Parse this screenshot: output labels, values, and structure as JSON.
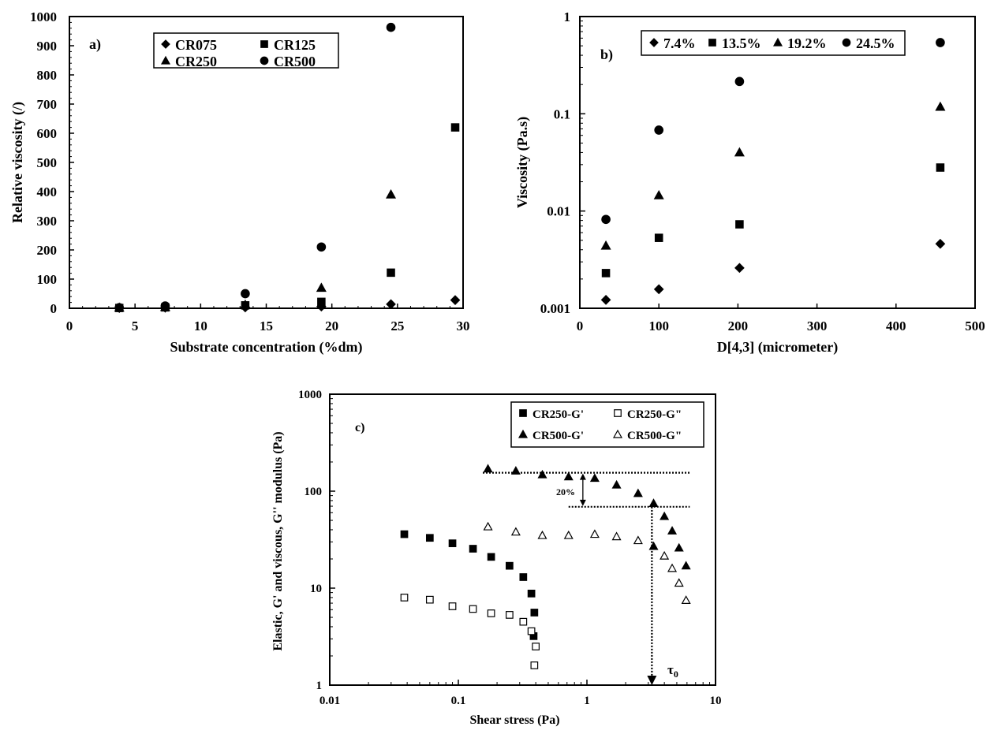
{
  "chart_data": [
    {
      "panel": "a)",
      "type": "scatter",
      "xlabel": "Substrate concentration (%dm)",
      "ylabel": "Relative viscosity (/)",
      "xlim": [
        0,
        30
      ],
      "ylim": [
        0,
        1000
      ],
      "x_ticks": [
        0,
        5,
        10,
        15,
        20,
        25,
        30
      ],
      "y_ticks": [
        0,
        100,
        200,
        300,
        400,
        500,
        600,
        700,
        800,
        900,
        1000
      ],
      "legend_position": "top-center",
      "series": [
        {
          "name": "CR075",
          "marker": "diamond",
          "points": [
            [
              3.8,
              1
            ],
            [
              7.3,
              2
            ],
            [
              13.4,
              3
            ],
            [
              19.2,
              6
            ],
            [
              24.5,
              14
            ],
            [
              29.4,
              28
            ]
          ]
        },
        {
          "name": "CR125",
          "marker": "square",
          "points": [
            [
              3.8,
              1
            ],
            [
              7.3,
              3
            ],
            [
              13.4,
              10
            ],
            [
              19.2,
              22
            ],
            [
              24.5,
              122
            ],
            [
              29.4,
              620
            ]
          ]
        },
        {
          "name": "CR250",
          "marker": "triangle",
          "points": [
            [
              3.8,
              2
            ],
            [
              7.3,
              4
            ],
            [
              13.4,
              12
            ],
            [
              19.2,
              70
            ],
            [
              24.5,
              390
            ]
          ]
        },
        {
          "name": "CR500",
          "marker": "circle",
          "points": [
            [
              3.8,
              2
            ],
            [
              7.3,
              8
            ],
            [
              13.4,
              50
            ],
            [
              19.2,
              210
            ],
            [
              24.5,
              963
            ]
          ]
        }
      ]
    },
    {
      "panel": "b)",
      "type": "scatter",
      "xlabel": "D[4,3] (micrometer)",
      "ylabel": "Viscosity (Pa.s)",
      "xlim": [
        0,
        500
      ],
      "ylim_log": [
        0.001,
        1
      ],
      "x_ticks": [
        0,
        100,
        200,
        300,
        400,
        500
      ],
      "y_ticks": [
        "0.001",
        "0.01",
        "0.1",
        "1"
      ],
      "legend_position": "top",
      "series": [
        {
          "name": "7.4%",
          "marker": "diamond",
          "points": [
            [
              33,
              0.00122
            ],
            [
              100,
              0.00157
            ],
            [
              202,
              0.0026
            ],
            [
              456,
              0.0046
            ]
          ]
        },
        {
          "name": "13.5%",
          "marker": "square",
          "points": [
            [
              33,
              0.0023
            ],
            [
              100,
              0.0053
            ],
            [
              202,
              0.0073
            ],
            [
              456,
              0.028
            ]
          ]
        },
        {
          "name": "19.2%",
          "marker": "triangle",
          "points": [
            [
              33,
              0.0044
            ],
            [
              100,
              0.0145
            ],
            [
              202,
              0.04
            ],
            [
              456,
              0.118
            ]
          ]
        },
        {
          "name": "24.5%",
          "marker": "circle",
          "points": [
            [
              33,
              0.0082
            ],
            [
              100,
              0.068
            ],
            [
              202,
              0.215
            ],
            [
              456,
              0.54
            ]
          ]
        }
      ]
    },
    {
      "panel": "c)",
      "type": "scatter",
      "xlabel": "Shear stress (Pa)",
      "ylabel": "Elastic, G' and viscous, G'' modulus (Pa)",
      "xlim_log": [
        0.01,
        10
      ],
      "ylim_log": [
        1,
        1000
      ],
      "x_ticks": [
        "0.01",
        "0.1",
        "1",
        "10"
      ],
      "y_ticks": [
        "1",
        "10",
        "100",
        "1000"
      ],
      "legend_position": "top-right",
      "annotations": {
        "percent_drop": "20%",
        "yield_stress": "τ",
        "yield_stress_sub": "0"
      },
      "series": [
        {
          "name": "CR250-G'",
          "marker": "square",
          "points": [
            [
              0.038,
              36
            ],
            [
              0.06,
              33
            ],
            [
              0.09,
              29
            ],
            [
              0.13,
              25.5
            ],
            [
              0.18,
              21
            ],
            [
              0.25,
              17
            ],
            [
              0.32,
              13
            ],
            [
              0.37,
              8.8
            ],
            [
              0.39,
              5.6
            ],
            [
              0.385,
              3.2
            ]
          ]
        },
        {
          "name": "CR250-G\"",
          "marker": "square-open",
          "points": [
            [
              0.038,
              8
            ],
            [
              0.06,
              7.6
            ],
            [
              0.09,
              6.5
            ],
            [
              0.13,
              6.1
            ],
            [
              0.18,
              5.5
            ],
            [
              0.25,
              5.3
            ],
            [
              0.32,
              4.5
            ],
            [
              0.37,
              3.6
            ],
            [
              0.4,
              2.5
            ],
            [
              0.39,
              1.6
            ]
          ]
        },
        {
          "name": "CR500-G'",
          "marker": "triangle",
          "points": [
            [
              0.17,
              170
            ],
            [
              0.28,
              162
            ],
            [
              0.45,
              148
            ],
            [
              0.72,
              141
            ],
            [
              1.15,
              136
            ],
            [
              1.7,
              116
            ],
            [
              2.5,
              95
            ],
            [
              3.3,
              75
            ],
            [
              4.0,
              55
            ],
            [
              4.6,
              39
            ],
            [
              5.2,
              26
            ],
            [
              5.9,
              17
            ],
            [
              3.3,
              27
            ]
          ]
        },
        {
          "name": "CR500-G\"",
          "marker": "triangle-open",
          "points": [
            [
              0.17,
              43
            ],
            [
              0.28,
              38
            ],
            [
              0.45,
              35
            ],
            [
              0.72,
              35
            ],
            [
              1.15,
              36
            ],
            [
              1.7,
              34
            ],
            [
              2.5,
              31
            ],
            [
              4.0,
              21.5
            ],
            [
              4.6,
              16
            ],
            [
              5.2,
              11.3
            ],
            [
              5.9,
              7.5
            ]
          ]
        }
      ]
    }
  ]
}
